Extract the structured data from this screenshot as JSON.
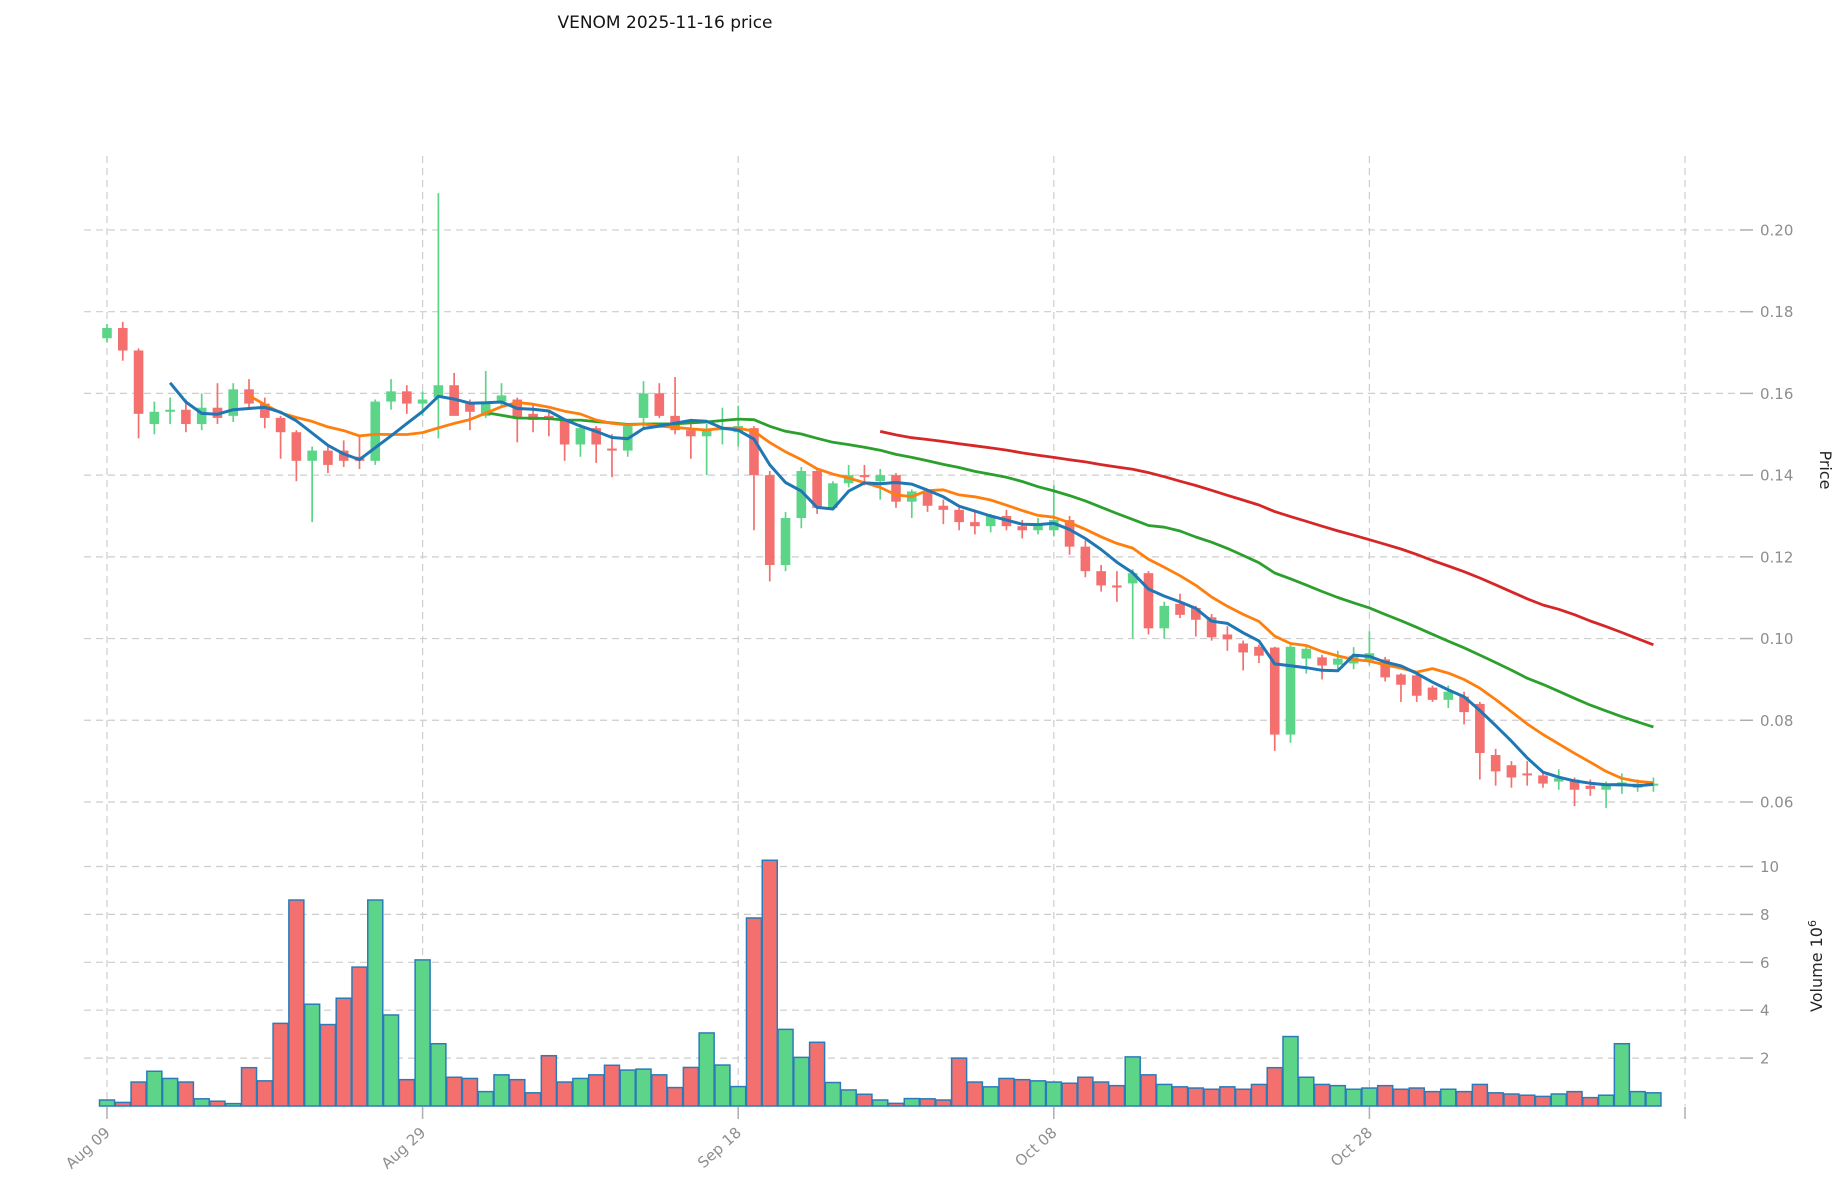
{
  "title": "VENOM  2025-11-16  price",
  "chart_data": {
    "type": "candlestick+volume",
    "x_axis": {
      "tick_labels": [
        "Aug 09",
        "Aug 29",
        "Sep 18",
        "Oct 08",
        "Oct 28",
        ""
      ],
      "tick_indices": [
        0,
        20,
        40,
        60,
        80,
        100
      ]
    },
    "price_axis": {
      "label": "Price",
      "ticks": [
        0.06,
        0.08,
        0.1,
        0.12,
        0.14,
        0.16,
        0.18,
        0.2
      ],
      "ylim": [
        0.0556,
        0.218
      ]
    },
    "volume_axis": {
      "label": "Volume",
      "scale_base": "10",
      "scale_exponent": "6",
      "ticks": [
        2,
        4,
        6,
        8,
        10
      ],
      "ylim": [
        0,
        10.95
      ]
    },
    "moving_averages": [
      {
        "name": "ma5",
        "period": 5,
        "color": "#1f77b4",
        "width": 3.0
      },
      {
        "name": "ma10",
        "period": 10,
        "color": "#ff7f0e",
        "width": 2.8
      },
      {
        "name": "ma25",
        "period": 25,
        "color": "#2ca02c",
        "width": 2.8
      },
      {
        "name": "ma50",
        "period": 50,
        "color": "#d62728",
        "width": 2.8
      }
    ],
    "colors": {
      "up": "#5dd589",
      "down": "#f4706e",
      "volume_edge": "#2b7bba",
      "grid": "#cdcdcd",
      "tick_mark": "#afafaf",
      "tick_label": "#8e8e8e",
      "title_text": "#141414",
      "axis_label_text": "#262626"
    },
    "candles": {
      "open": [
        0.1735,
        0.176,
        0.1705,
        0.1525,
        0.1555,
        0.156,
        0.1525,
        0.1565,
        0.1545,
        0.161,
        0.1575,
        0.154,
        0.1505,
        0.1435,
        0.146,
        0.146,
        0.1445,
        0.1435,
        0.158,
        0.1605,
        0.1575,
        0.159,
        0.162,
        0.1575,
        0.1545,
        0.158,
        0.1585,
        0.155,
        0.1545,
        0.1535,
        0.1475,
        0.1515,
        0.1465,
        0.146,
        0.154,
        0.16,
        0.1545,
        0.151,
        0.1495,
        0.151,
        0.1505,
        0.1515,
        0.14,
        0.118,
        0.1295,
        0.141,
        0.132,
        0.138,
        0.14,
        0.1385,
        0.14,
        0.1335,
        0.136,
        0.1325,
        0.1315,
        0.1285,
        0.1275,
        0.13,
        0.1275,
        0.1265,
        0.1265,
        0.129,
        0.1225,
        0.1165,
        0.113,
        0.1135,
        0.116,
        0.1025,
        0.1085,
        0.1075,
        0.1052,
        0.101,
        0.0988,
        0.098,
        0.0978,
        0.0765,
        0.0951,
        0.0954,
        0.0936,
        0.0939,
        0.0947,
        0.0949,
        0.0912,
        0.091,
        0.088,
        0.085,
        0.0858,
        0.084,
        0.0715,
        0.069,
        0.067,
        0.0665,
        0.065,
        0.0655,
        0.064,
        0.063,
        0.0638,
        0.0635,
        0.064
      ],
      "high": [
        0.177,
        0.1775,
        0.171,
        0.158,
        0.159,
        0.1585,
        0.16,
        0.1625,
        0.1625,
        0.1635,
        0.159,
        0.1545,
        0.151,
        0.147,
        0.1475,
        0.1485,
        0.1495,
        0.1585,
        0.1635,
        0.162,
        0.1605,
        0.209,
        0.165,
        0.1585,
        0.1655,
        0.1625,
        0.159,
        0.1575,
        0.156,
        0.154,
        0.1525,
        0.152,
        0.15,
        0.1525,
        0.163,
        0.1625,
        0.164,
        0.1535,
        0.1525,
        0.1565,
        0.157,
        0.152,
        0.141,
        0.131,
        0.142,
        0.1415,
        0.1385,
        0.1425,
        0.1425,
        0.1415,
        0.1405,
        0.1365,
        0.1365,
        0.134,
        0.132,
        0.1315,
        0.1305,
        0.1315,
        0.129,
        0.1295,
        0.1375,
        0.13,
        0.124,
        0.118,
        0.1165,
        0.117,
        0.1165,
        0.109,
        0.111,
        0.108,
        0.106,
        0.103,
        0.0995,
        0.0985,
        0.098,
        0.0985,
        0.098,
        0.096,
        0.097,
        0.0979,
        0.1018,
        0.0955,
        0.0915,
        0.092,
        0.0885,
        0.0885,
        0.087,
        0.0845,
        0.073,
        0.07,
        0.07,
        0.0675,
        0.068,
        0.066,
        0.0655,
        0.065,
        0.067,
        0.0655,
        0.066
      ],
      "low": [
        0.1725,
        0.168,
        0.149,
        0.15,
        0.1525,
        0.1505,
        0.151,
        0.1525,
        0.153,
        0.156,
        0.1515,
        0.144,
        0.1385,
        0.1285,
        0.1405,
        0.142,
        0.1415,
        0.1425,
        0.156,
        0.155,
        0.1545,
        0.149,
        0.1565,
        0.151,
        0.154,
        0.1565,
        0.148,
        0.1505,
        0.1495,
        0.1435,
        0.1445,
        0.143,
        0.1395,
        0.1445,
        0.1515,
        0.154,
        0.15,
        0.144,
        0.14,
        0.1475,
        0.147,
        0.1265,
        0.114,
        0.1165,
        0.127,
        0.1305,
        0.1315,
        0.137,
        0.1375,
        0.134,
        0.132,
        0.1295,
        0.131,
        0.128,
        0.1265,
        0.1255,
        0.126,
        0.1265,
        0.1245,
        0.1255,
        0.125,
        0.1205,
        0.115,
        0.1115,
        0.109,
        0.1,
        0.101,
        0.1,
        0.105,
        0.1005,
        0.0995,
        0.097,
        0.0922,
        0.094,
        0.0725,
        0.0745,
        0.0914,
        0.09,
        0.092,
        0.0925,
        0.0935,
        0.0895,
        0.0845,
        0.0845,
        0.0845,
        0.083,
        0.079,
        0.0655,
        0.064,
        0.0635,
        0.064,
        0.0635,
        0.063,
        0.059,
        0.0615,
        0.0585,
        0.062,
        0.0625,
        0.0625
      ],
      "close": [
        0.176,
        0.1705,
        0.155,
        0.1555,
        0.156,
        0.1525,
        0.1565,
        0.154,
        0.161,
        0.1575,
        0.154,
        0.1505,
        0.1435,
        0.146,
        0.1425,
        0.1435,
        0.1435,
        0.158,
        0.1605,
        0.1575,
        0.1585,
        0.162,
        0.1545,
        0.1555,
        0.158,
        0.1595,
        0.154,
        0.1535,
        0.1535,
        0.1475,
        0.1515,
        0.1475,
        0.146,
        0.152,
        0.16,
        0.1545,
        0.151,
        0.1495,
        0.151,
        0.1515,
        0.152,
        0.14,
        0.118,
        0.1295,
        0.141,
        0.132,
        0.138,
        0.14,
        0.1395,
        0.14,
        0.1335,
        0.136,
        0.1325,
        0.1315,
        0.1285,
        0.1275,
        0.13,
        0.1275,
        0.1265,
        0.128,
        0.129,
        0.1225,
        0.1165,
        0.113,
        0.1125,
        0.116,
        0.1025,
        0.108,
        0.1058,
        0.1046,
        0.1003,
        0.0998,
        0.0966,
        0.0958,
        0.0765,
        0.098,
        0.0975,
        0.0934,
        0.0951,
        0.0958,
        0.0964,
        0.0905,
        0.0887,
        0.086,
        0.085,
        0.087,
        0.082,
        0.072,
        0.0675,
        0.066,
        0.0665,
        0.0645,
        0.0658,
        0.063,
        0.0632,
        0.0645,
        0.0648,
        0.0645,
        0.0645
      ],
      "volume": [
        0.25,
        0.15,
        1.0,
        1.45,
        1.15,
        1.0,
        0.3,
        0.2,
        0.1,
        1.6,
        1.05,
        3.45,
        8.6,
        4.25,
        3.4,
        4.5,
        5.8,
        8.6,
        3.8,
        1.1,
        6.1,
        2.6,
        1.2,
        1.15,
        0.6,
        1.3,
        1.1,
        0.55,
        2.1,
        1.0,
        1.15,
        1.3,
        1.7,
        1.5,
        1.54,
        1.3,
        0.77,
        1.61,
        3.05,
        1.71,
        0.81,
        7.85,
        10.26,
        3.2,
        2.03,
        2.66,
        0.98,
        0.67,
        0.49,
        0.25,
        0.11,
        0.31,
        0.3,
        0.25,
        2.0,
        1.0,
        0.8,
        1.15,
        1.1,
        1.05,
        1.0,
        0.95,
        1.2,
        1.0,
        0.85,
        2.05,
        1.3,
        0.9,
        0.8,
        0.75,
        0.7,
        0.8,
        0.7,
        0.9,
        1.6,
        2.9,
        1.2,
        0.9,
        0.85,
        0.7,
        0.75,
        0.85,
        0.7,
        0.75,
        0.6,
        0.7,
        0.6,
        0.9,
        0.55,
        0.5,
        0.45,
        0.4,
        0.5,
        0.6,
        0.35,
        0.45,
        2.6,
        0.6,
        0.55
      ]
    }
  }
}
